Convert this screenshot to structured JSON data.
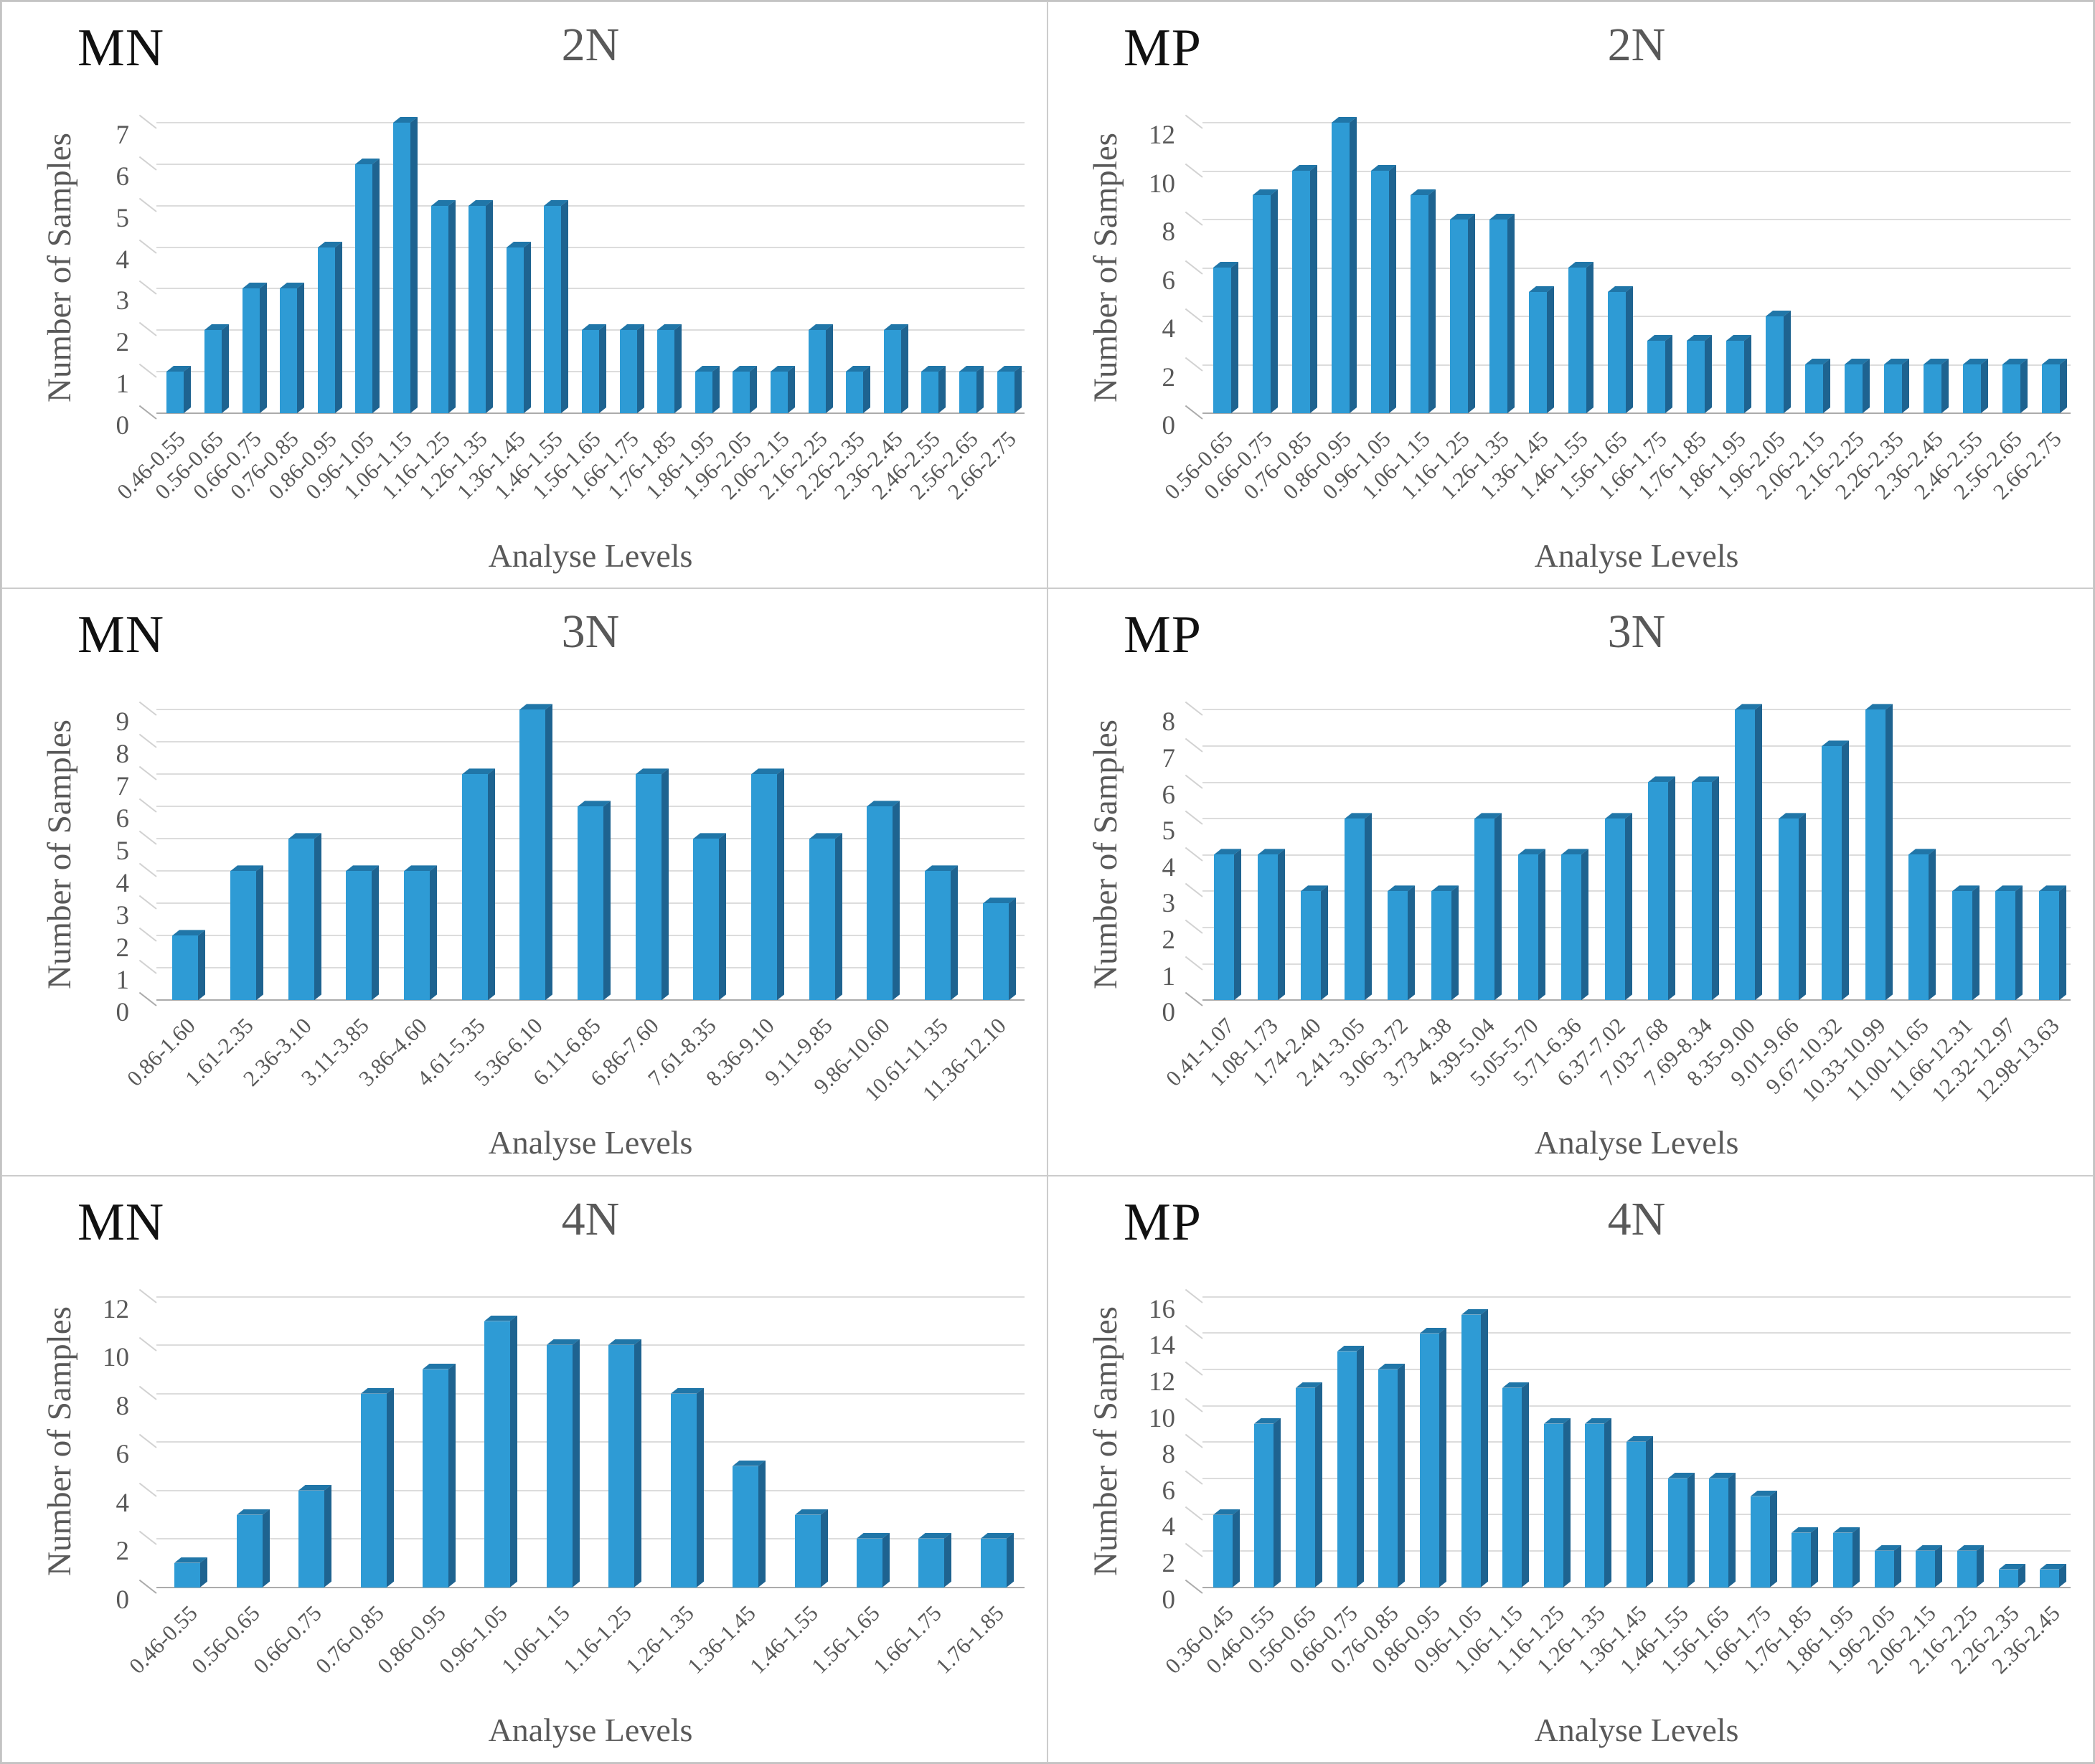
{
  "figure": {
    "ylabel": "Number of Samples",
    "xlabel": "Analyse Levels",
    "colors": {
      "bar_front": "#2E9BD5",
      "bar_top": "#2076A8",
      "bar_side": "#1E6390",
      "gridline": "#DCDCDC",
      "baseline": "#ABABAB",
      "axis_text": "#595959",
      "corner_text": "#111111"
    }
  },
  "chart_data": [
    {
      "type": "bar",
      "corner_label": "MN",
      "title": "2N",
      "ylabel": "Number of Samples",
      "xlabel": "Analyse Levels",
      "ylim": [
        0,
        7
      ],
      "ystep": 1,
      "grid": true,
      "legend": "none",
      "categories": [
        "0.46-0.55",
        "0.56-0.65",
        "0.66-0.75",
        "0.76-0.85",
        "0.86-0.95",
        "0.96-1.05",
        "1.06-1.15",
        "1.16-1.25",
        "1.26-1.35",
        "1.36-1.45",
        "1.46-1.55",
        "1.56-1.65",
        "1.66-1.75",
        "1.76-1.85",
        "1.86-1.95",
        "1.96-2.05",
        "2.06-2.15",
        "2.16-2.25",
        "2.26-2.35",
        "2.36-2.45",
        "2.46-2.55",
        "2.56-2.65",
        "2.66-2.75"
      ],
      "values": [
        1,
        2,
        3,
        3,
        4,
        6,
        7,
        5,
        5,
        4,
        5,
        2,
        2,
        2,
        1,
        1,
        1,
        2,
        1,
        2,
        1,
        1,
        1
      ]
    },
    {
      "type": "bar",
      "corner_label": "MP",
      "title": "2N",
      "ylabel": "Number of Samples",
      "xlabel": "Analyse Levels",
      "ylim": [
        0,
        12
      ],
      "ystep": 2,
      "grid": true,
      "legend": "none",
      "categories": [
        "0.56-0.65",
        "0.66-0.75",
        "0.76-0.85",
        "0.86-0.95",
        "0.96-1.05",
        "1.06-1.15",
        "1.16-1.25",
        "1.26-1.35",
        "1.36-1.45",
        "1.46-1.55",
        "1.56-1.65",
        "1.66-1.75",
        "1.76-1.85",
        "1.86-1.95",
        "1.96-2.05",
        "2.06-2.15",
        "2.16-2.25",
        "2.26-2.35",
        "2.36-2.45",
        "2.46-2.55",
        "2.56-2.65",
        "2.66-2.75"
      ],
      "values": [
        6,
        9,
        10,
        12,
        10,
        9,
        8,
        8,
        5,
        6,
        5,
        3,
        3,
        3,
        4,
        2,
        2,
        2,
        2,
        2,
        2,
        2
      ]
    },
    {
      "type": "bar",
      "corner_label": "MN",
      "title": "3N",
      "ylabel": "Number of Samples",
      "xlabel": "Analyse Levels",
      "ylim": [
        0,
        9
      ],
      "ystep": 1,
      "grid": true,
      "legend": "none",
      "categories": [
        "0.86-1.60",
        "1.61-2.35",
        "2.36-3.10",
        "3.11-3.85",
        "3.86-4.60",
        "4.61-5.35",
        "5.36-6.10",
        "6.11-6.85",
        "6.86-7.60",
        "7.61-8.35",
        "8.36-9.10",
        "9.11-9.85",
        "9.86-10.60",
        "10.61-11.35",
        "11.36-12.10"
      ],
      "values": [
        2,
        4,
        5,
        4,
        4,
        7,
        9,
        6,
        7,
        5,
        7,
        5,
        6,
        4,
        3
      ]
    },
    {
      "type": "bar",
      "corner_label": "MP",
      "title": "3N",
      "ylabel": "Number of Samples",
      "xlabel": "Analyse Levels",
      "ylim": [
        0,
        8
      ],
      "ystep": 1,
      "grid": true,
      "legend": "none",
      "categories": [
        "0.41-1.07",
        "1.08-1.73",
        "1.74-2.40",
        "2.41-3.05",
        "3.06-3.72",
        "3.73-4.38",
        "4.39-5.04",
        "5.05-5.70",
        "5.71-6.36",
        "6.37-7.02",
        "7.03-7.68",
        "7.69-8.34",
        "8.35-9.00",
        "9.01-9.66",
        "9.67-10.32",
        "10.33-10.99",
        "11.00-11.65",
        "11.66-12.31",
        "12.32-12.97",
        "12.98-13.63"
      ],
      "values": [
        4,
        4,
        3,
        5,
        3,
        3,
        5,
        4,
        4,
        5,
        6,
        6,
        8,
        5,
        7,
        8,
        4,
        3,
        3,
        3
      ]
    },
    {
      "type": "bar",
      "corner_label": "MN",
      "title": "4N",
      "ylabel": "Number of Samples",
      "xlabel": "Analyse Levels",
      "ylim": [
        0,
        12
      ],
      "ystep": 2,
      "grid": true,
      "legend": "none",
      "categories": [
        "0.46-0.55",
        "0.56-0.65",
        "0.66-0.75",
        "0.76-0.85",
        "0.86-0.95",
        "0.96-1.05",
        "1.06-1.15",
        "1.16-1.25",
        "1.26-1.35",
        "1.36-1.45",
        "1.46-1.55",
        "1.56-1.65",
        "1.66-1.75",
        "1.76-1.85"
      ],
      "values": [
        1,
        3,
        4,
        8,
        9,
        11,
        10,
        10,
        8,
        5,
        3,
        2,
        2,
        2
      ]
    },
    {
      "type": "bar",
      "corner_label": "MP",
      "title": "4N",
      "ylabel": "Number of Samples",
      "xlabel": "Analyse Levels",
      "ylim": [
        0,
        16
      ],
      "ystep": 2,
      "grid": true,
      "legend": "none",
      "categories": [
        "0.36-0.45",
        "0.46-0.55",
        "0.56-0.65",
        "0.66-0.75",
        "0.76-0.85",
        "0.86-0.95",
        "0.96-1.05",
        "1.06-1.15",
        "1.16-1.25",
        "1.26-1.35",
        "1.36-1.45",
        "1.46-1.55",
        "1.56-1.65",
        "1.66-1.75",
        "1.76-1.85",
        "1.86-1.95",
        "1.96-2.05",
        "2.06-2.15",
        "2.16-2.25",
        "2.26-2.35",
        "2.36-2.45"
      ],
      "values": [
        4,
        9,
        11,
        13,
        12,
        14,
        15,
        11,
        9,
        9,
        8,
        6,
        6,
        5,
        3,
        3,
        2,
        2,
        2,
        1,
        1
      ]
    }
  ]
}
